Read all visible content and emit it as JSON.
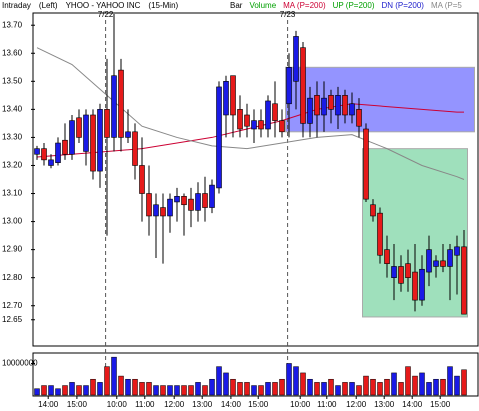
{
  "chart_data": {
    "type": "candlestick",
    "header": [
      "Intraday",
      "(Left)",
      "YHOO - YAHOO INC",
      "(15-Min)"
    ],
    "legend": [
      {
        "text": "Bar",
        "color": "#000000"
      },
      {
        "text": "Volume",
        "color": "#00a000"
      },
      {
        "text": "MA (P=200)",
        "color": "#cc0033"
      },
      {
        "text": "UP (P=200)",
        "color": "#00a000"
      },
      {
        "text": "DN (P=200)",
        "color": "#2020cc"
      },
      {
        "text": "MA (P=5",
        "color": "#888888"
      }
    ],
    "up_color": "#1a1ae6",
    "down_color": "#e61a1a",
    "open": [
      13.24,
      13.26,
      13.2,
      13.21,
      13.29,
      13.24,
      13.37,
      13.25,
      13.38,
      13.18,
      13.4,
      13.3,
      13.54,
      13.3,
      13.32,
      13.2,
      13.1,
      13.02,
      13.05,
      13.02,
      13.07,
      13.09,
      13.08,
      13.04,
      13.1,
      13.05,
      13.12,
      13.38,
      13.52,
      13.4,
      13.38,
      13.33,
      13.36,
      13.33,
      13.42,
      13.36,
      13.42,
      13.5,
      13.62,
      13.35,
      13.45,
      13.38,
      13.45,
      13.38,
      13.45,
      13.38,
      13.4,
      13.33,
      13.06,
      13.03,
      12.9,
      12.8,
      12.84,
      12.85,
      12.82,
      12.72,
      12.82,
      12.84,
      12.86,
      12.84,
      12.88,
      12.91
    ],
    "high": [
      13.27,
      13.28,
      13.24,
      13.3,
      13.35,
      13.38,
      13.4,
      13.4,
      13.4,
      13.42,
      13.58,
      13.74,
      13.58,
      13.4,
      13.35,
      13.3,
      13.2,
      13.1,
      13.1,
      13.1,
      13.12,
      13.1,
      13.12,
      13.14,
      13.16,
      13.15,
      13.5,
      13.52,
      13.52,
      13.45,
      13.42,
      13.4,
      13.4,
      13.45,
      13.5,
      13.4,
      13.6,
      13.68,
      13.64,
      13.48,
      13.5,
      13.5,
      13.47,
      13.48,
      13.47,
      13.46,
      13.44,
      13.35,
      13.08,
      13.05,
      12.95,
      12.92,
      12.88,
      12.9,
      12.92,
      12.88,
      12.95,
      12.88,
      12.92,
      12.92,
      12.95,
      12.97
    ],
    "low": [
      13.22,
      13.2,
      13.19,
      13.2,
      13.22,
      13.22,
      13.28,
      13.2,
      13.15,
      13.12,
      12.95,
      13.25,
      13.25,
      13.28,
      13.15,
      13.0,
      12.95,
      12.87,
      12.85,
      12.96,
      13.0,
      12.95,
      12.98,
      13.0,
      13.0,
      13.03,
      13.1,
      13.3,
      13.3,
      13.3,
      13.3,
      13.28,
      13.3,
      13.3,
      13.3,
      13.3,
      13.3,
      13.4,
      13.3,
      13.3,
      13.3,
      13.32,
      13.35,
      13.33,
      13.35,
      13.35,
      13.3,
      13.07,
      13.0,
      12.85,
      12.8,
      12.72,
      12.75,
      12.75,
      12.68,
      12.7,
      12.77,
      12.8,
      12.82,
      12.72,
      12.74,
      12.67
    ],
    "close": [
      13.26,
      13.22,
      13.22,
      13.28,
      13.24,
      13.36,
      13.3,
      13.38,
      13.18,
      13.4,
      13.3,
      13.52,
      13.3,
      13.32,
      13.2,
      13.1,
      13.02,
      13.06,
      13.02,
      13.08,
      13.09,
      13.06,
      13.04,
      13.1,
      13.05,
      13.13,
      13.48,
      13.5,
      13.38,
      13.33,
      13.34,
      13.36,
      13.33,
      13.43,
      13.36,
      13.32,
      13.55,
      13.66,
      13.35,
      13.44,
      13.38,
      13.44,
      13.4,
      13.45,
      13.38,
      13.42,
      13.34,
      13.08,
      13.02,
      12.88,
      12.85,
      12.84,
      12.78,
      12.8,
      12.72,
      12.83,
      12.9,
      12.86,
      12.84,
      12.9,
      12.91,
      12.67
    ],
    "series": [
      {
        "color": "#cc0033",
        "x": [
          0,
          5,
          10,
          15,
          20,
          25,
          30,
          35,
          40,
          45,
          50,
          55,
          60,
          61
        ],
        "values": [
          13.23,
          13.24,
          13.25,
          13.26,
          13.28,
          13.3,
          13.33,
          13.36,
          13.4,
          13.42,
          13.41,
          13.4,
          13.39,
          13.39
        ]
      },
      {
        "color": "#888888",
        "x": [
          0,
          5,
          10,
          15,
          20,
          25,
          30,
          35,
          40,
          45,
          50,
          55,
          60,
          61
        ],
        "values": [
          13.62,
          13.56,
          13.45,
          13.34,
          13.3,
          13.27,
          13.26,
          13.28,
          13.3,
          13.31,
          13.26,
          13.2,
          13.16,
          13.15
        ]
      }
    ],
    "bands": [
      {
        "color": "#7070ff",
        "x": [
          35.5,
          62.5
        ],
        "ylim": [
          13.32,
          13.55
        ]
      },
      {
        "color": "#7fd6a6",
        "x": [
          46.5,
          61.5
        ],
        "ylim": [
          12.66,
          13.26
        ]
      }
    ],
    "dates": [
      {
        "value": 9.8,
        "label": "7/22"
      },
      {
        "value": 35.8,
        "label": "7/23"
      }
    ],
    "ylim": [
      12.56,
      13.74
    ],
    "yticks": [
      {
        "value": 13.7,
        "label": "13.70"
      },
      {
        "value": 13.6,
        "label": "13.60"
      },
      {
        "value": 13.5,
        "label": "13.50"
      },
      {
        "value": 13.4,
        "label": "13.40"
      },
      {
        "value": 13.3,
        "label": "13.30"
      },
      {
        "value": 13.2,
        "label": "13.20"
      },
      {
        "value": 13.1,
        "label": "13.10"
      },
      {
        "value": 13.0,
        "label": "13.00"
      },
      {
        "value": 12.9,
        "label": "12.90"
      },
      {
        "value": 12.8,
        "label": "12.80"
      },
      {
        "value": 12.7,
        "label": "12.70"
      },
      12.65
    ],
    "xticks": [
      {
        "value": 1.6,
        "label": "14:00"
      },
      {
        "value": 5.7,
        "label": "15:00"
      },
      {
        "value": 11.4,
        "label": "10:00"
      },
      {
        "value": 15.4,
        "label": "11:00"
      },
      {
        "value": 19.6,
        "label": "12:00"
      },
      {
        "value": 23.6,
        "label": "13:00"
      },
      {
        "value": 27.7,
        "label": "14:00"
      },
      {
        "value": 31.6,
        "label": "15:00"
      },
      {
        "value": 37.6,
        "label": "10:00"
      },
      {
        "value": 41.4,
        "label": "11:00"
      },
      {
        "value": 45.6,
        "label": "12:00"
      },
      {
        "value": 49.6,
        "label": "13:00"
      },
      {
        "value": 53.6,
        "label": "14:00"
      },
      {
        "value": 57.6,
        "label": "15:00"
      }
    ],
    "volume": {
      "values": [
        2000000,
        3000000,
        3000000,
        2000000,
        3000000,
        4000000,
        3000000,
        3000000,
        5000000,
        4000000,
        9000000,
        12000000,
        6000000,
        5000000,
        5000000,
        4000000,
        4000000,
        3000000,
        3000000,
        3000000,
        3000000,
        3000000,
        3000000,
        4000000,
        3000000,
        5000000,
        9000000,
        7000000,
        5000000,
        4000000,
        4000000,
        3000000,
        3000000,
        4000000,
        4000000,
        5000000,
        10000000,
        9000000,
        7000000,
        5000000,
        4000000,
        4000000,
        5000000,
        3000000,
        4000000,
        4000000,
        3000000,
        6000000,
        5000000,
        4000000,
        5000000,
        7000000,
        4000000,
        9000000,
        6000000,
        7000000,
        4000000,
        5000000,
        5000000,
        9000000,
        6000000,
        8000000
      ],
      "ylim": [
        0,
        13000000
      ],
      "yticks": [
        10000000
      ]
    }
  }
}
